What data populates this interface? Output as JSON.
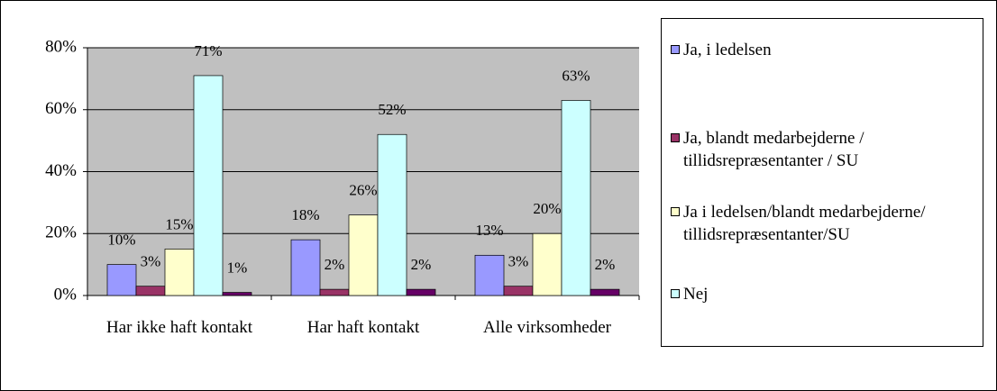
{
  "chart_data": {
    "type": "bar",
    "categories": [
      "Har ikke haft kontakt",
      "Har haft kontakt",
      "Alle virksomheder"
    ],
    "series": [
      {
        "name": "Ja, i ledelsen",
        "color": "#9999ff",
        "values": [
          10,
          18,
          13
        ],
        "value_labels": [
          "10%",
          "18%",
          "13%"
        ]
      },
      {
        "name": "Ja, blandt medarbejderne / tillidsrepræsentanter / SU",
        "color": "#993366",
        "values": [
          3,
          2,
          3
        ],
        "value_labels": [
          "3%",
          "2%",
          "3%"
        ]
      },
      {
        "name": "Ja i ledelsen/blandt medarbejderne/ tillidsrepræsentanter/SU",
        "color": "#ffffcc",
        "values": [
          15,
          26,
          20
        ],
        "value_labels": [
          "15%",
          "26%",
          "20%"
        ]
      },
      {
        "name": "Nej",
        "color": "#ccffff",
        "values": [
          71,
          52,
          63
        ],
        "value_labels": [
          "71%",
          "52%",
          "63%"
        ]
      },
      {
        "color": "#660066",
        "values": [
          1,
          2,
          2
        ],
        "value_labels": [
          "1%",
          "2%",
          "2%"
        ]
      }
    ],
    "ylim": [
      0,
      80
    ],
    "yticks": [
      {
        "value": 0,
        "label": "0%"
      },
      {
        "value": 20,
        "label": "20%"
      },
      {
        "value": 40,
        "label": "40%"
      },
      {
        "value": 60,
        "label": "60%"
      },
      {
        "value": 80,
        "label": "80%"
      }
    ],
    "grid": true,
    "legend": "right"
  }
}
